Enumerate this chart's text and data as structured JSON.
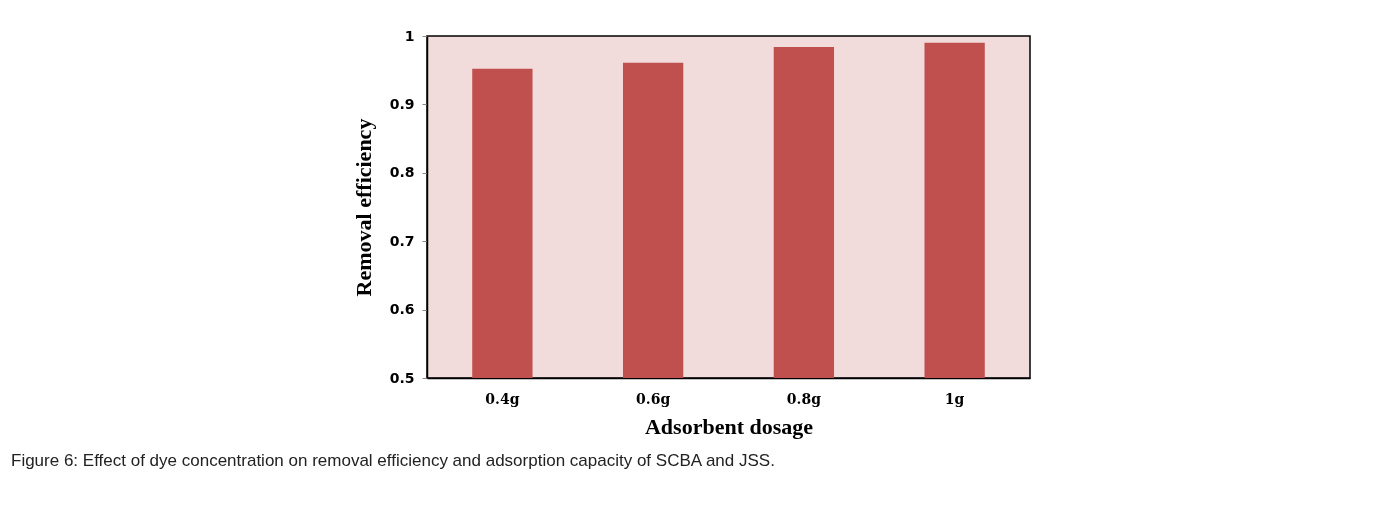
{
  "chart_data": {
    "type": "bar",
    "xlabel": "Adsorbent dosage",
    "ylabel": "Removal efficiency",
    "categories": [
      "0.4g",
      "0.6g",
      "0.8g",
      "1g"
    ],
    "values": [
      0.952,
      0.961,
      0.984,
      0.99
    ],
    "color": "#c0504d",
    "ylim": [
      0.5,
      1
    ],
    "yticks": [
      0.5,
      0.6,
      0.7,
      0.8,
      0.9,
      {
        "value": 1,
        "label": "1"
      }
    ],
    "grid": false,
    "annotations": [
      "Figure 6: Effect of dye concentration on removal efficiency and adsorption capacity of SCBA and JSS."
    ]
  }
}
